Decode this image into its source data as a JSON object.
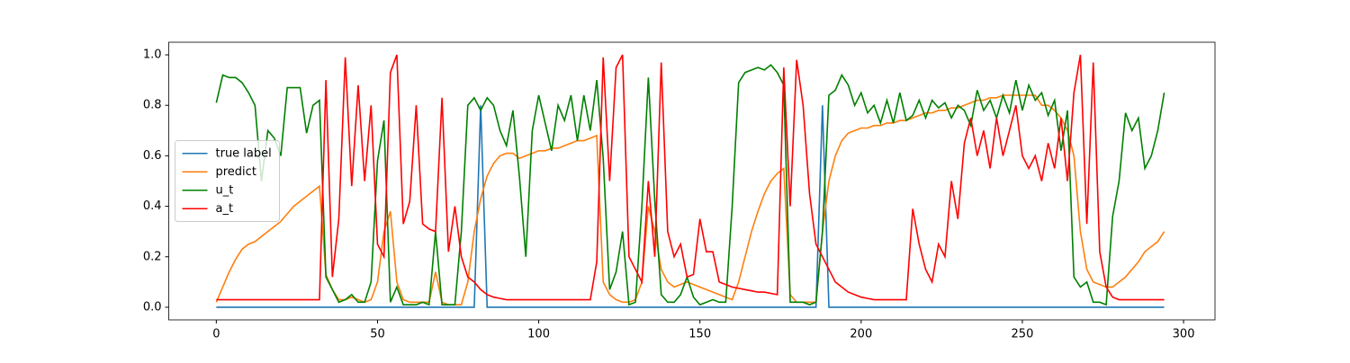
{
  "chart_data": {
    "type": "line",
    "x": [
      0,
      2,
      4,
      6,
      8,
      10,
      12,
      14,
      16,
      18,
      20,
      22,
      24,
      26,
      28,
      30,
      32,
      34,
      36,
      38,
      40,
      42,
      44,
      46,
      48,
      50,
      52,
      54,
      56,
      58,
      60,
      62,
      64,
      66,
      68,
      70,
      72,
      74,
      76,
      78,
      80,
      82,
      84,
      86,
      88,
      90,
      92,
      94,
      96,
      98,
      100,
      102,
      104,
      106,
      108,
      110,
      112,
      114,
      116,
      118,
      120,
      122,
      124,
      126,
      128,
      130,
      132,
      134,
      136,
      138,
      140,
      142,
      144,
      146,
      148,
      150,
      152,
      154,
      156,
      158,
      160,
      162,
      164,
      166,
      168,
      170,
      172,
      174,
      176,
      178,
      180,
      182,
      184,
      186,
      188,
      190,
      192,
      194,
      196,
      198,
      200,
      202,
      204,
      206,
      208,
      210,
      212,
      214,
      216,
      218,
      220,
      222,
      224,
      226,
      228,
      230,
      232,
      234,
      236,
      238,
      240,
      242,
      244,
      246,
      248,
      250,
      252,
      254,
      256,
      258,
      260,
      262,
      264,
      266,
      268,
      270,
      272,
      274,
      276,
      278,
      280,
      282,
      284,
      286,
      288,
      290,
      292,
      294
    ],
    "series": [
      {
        "name": "true label",
        "color": "#1f77b4",
        "values": [
          0,
          0,
          0,
          0,
          0,
          0,
          0,
          0,
          0,
          0,
          0,
          0,
          0,
          0,
          0,
          0,
          0,
          0,
          0,
          0,
          0,
          0,
          0,
          0,
          0,
          0,
          0,
          0,
          0,
          0,
          0,
          0,
          0,
          0,
          0,
          0,
          0,
          0,
          0,
          0,
          0,
          0.8,
          0,
          0,
          0,
          0,
          0,
          0,
          0,
          0,
          0,
          0,
          0,
          0,
          0,
          0,
          0,
          0,
          0,
          0,
          0,
          0,
          0,
          0,
          0,
          0,
          0,
          0,
          0,
          0,
          0,
          0,
          0,
          0,
          0,
          0,
          0,
          0,
          0,
          0,
          0,
          0,
          0,
          0,
          0,
          0,
          0,
          0,
          0,
          0,
          0,
          0,
          0,
          0,
          0.8,
          0,
          0,
          0,
          0,
          0,
          0,
          0,
          0,
          0,
          0,
          0,
          0,
          0,
          0,
          0,
          0,
          0,
          0,
          0,
          0,
          0,
          0,
          0,
          0,
          0,
          0,
          0,
          0,
          0,
          0,
          0,
          0,
          0,
          0,
          0,
          0,
          0,
          0,
          0,
          0,
          0,
          0,
          0,
          0,
          0,
          0,
          0,
          0,
          0,
          0,
          0,
          0,
          0
        ]
      },
      {
        "name": "predict",
        "color": "#ff7f0e",
        "values": [
          0.02,
          0.08,
          0.14,
          0.19,
          0.23,
          0.25,
          0.26,
          0.28,
          0.3,
          0.32,
          0.34,
          0.37,
          0.4,
          0.42,
          0.44,
          0.46,
          0.48,
          0.13,
          0.07,
          0.03,
          0.03,
          0.04,
          0.03,
          0.02,
          0.03,
          0.1,
          0.3,
          0.38,
          0.1,
          0.03,
          0.02,
          0.02,
          0.02,
          0.02,
          0.14,
          0.02,
          0.01,
          0.01,
          0.01,
          0.1,
          0.3,
          0.43,
          0.52,
          0.57,
          0.6,
          0.61,
          0.61,
          0.59,
          0.6,
          0.61,
          0.62,
          0.62,
          0.63,
          0.63,
          0.64,
          0.65,
          0.66,
          0.66,
          0.67,
          0.68,
          0.1,
          0.05,
          0.03,
          0.02,
          0.02,
          0.03,
          0.1,
          0.4,
          0.3,
          0.15,
          0.1,
          0.08,
          0.09,
          0.1,
          0.09,
          0.08,
          0.07,
          0.06,
          0.05,
          0.04,
          0.03,
          0.1,
          0.2,
          0.3,
          0.38,
          0.45,
          0.5,
          0.53,
          0.55,
          0.05,
          0.02,
          0.02,
          0.02,
          0.02,
          0.3,
          0.5,
          0.6,
          0.66,
          0.69,
          0.7,
          0.71,
          0.71,
          0.72,
          0.72,
          0.73,
          0.73,
          0.74,
          0.74,
          0.75,
          0.76,
          0.77,
          0.77,
          0.78,
          0.78,
          0.79,
          0.79,
          0.8,
          0.81,
          0.82,
          0.82,
          0.83,
          0.83,
          0.84,
          0.84,
          0.84,
          0.84,
          0.84,
          0.84,
          0.8,
          0.8,
          0.78,
          0.75,
          0.7,
          0.6,
          0.3,
          0.15,
          0.1,
          0.09,
          0.08,
          0.08,
          0.1,
          0.12,
          0.15,
          0.18,
          0.22,
          0.24,
          0.26,
          0.3
        ]
      },
      {
        "name": "u_t",
        "color": "#008000",
        "values": [
          0.81,
          0.92,
          0.91,
          0.91,
          0.89,
          0.85,
          0.8,
          0.5,
          0.7,
          0.67,
          0.6,
          0.87,
          0.87,
          0.87,
          0.69,
          0.8,
          0.82,
          0.12,
          0.07,
          0.02,
          0.03,
          0.05,
          0.02,
          0.02,
          0.1,
          0.58,
          0.74,
          0.02,
          0.08,
          0.01,
          0.01,
          0.01,
          0.02,
          0.01,
          0.3,
          0.01,
          0.01,
          0.01,
          0.3,
          0.8,
          0.83,
          0.78,
          0.83,
          0.8,
          0.7,
          0.64,
          0.78,
          0.52,
          0.2,
          0.7,
          0.84,
          0.73,
          0.62,
          0.8,
          0.74,
          0.84,
          0.66,
          0.84,
          0.7,
          0.9,
          0.59,
          0.07,
          0.14,
          0.3,
          0.01,
          0.02,
          0.4,
          0.91,
          0.42,
          0.05,
          0.02,
          0.02,
          0.05,
          0.12,
          0.04,
          0.01,
          0.02,
          0.03,
          0.02,
          0.02,
          0.4,
          0.89,
          0.93,
          0.94,
          0.95,
          0.94,
          0.96,
          0.93,
          0.88,
          0.02,
          0.02,
          0.02,
          0.01,
          0.02,
          0.3,
          0.84,
          0.86,
          0.92,
          0.88,
          0.8,
          0.85,
          0.77,
          0.8,
          0.73,
          0.82,
          0.73,
          0.85,
          0.74,
          0.76,
          0.82,
          0.75,
          0.82,
          0.79,
          0.81,
          0.75,
          0.8,
          0.78,
          0.72,
          0.86,
          0.78,
          0.82,
          0.75,
          0.84,
          0.77,
          0.9,
          0.78,
          0.88,
          0.82,
          0.85,
          0.76,
          0.82,
          0.62,
          0.78,
          0.12,
          0.08,
          0.1,
          0.02,
          0.02,
          0.01,
          0.36,
          0.5,
          0.77,
          0.7,
          0.75,
          0.55,
          0.6,
          0.7,
          0.85
        ]
      },
      {
        "name": "a_t",
        "color": "#ff0000",
        "values": [
          0.03,
          0.03,
          0.03,
          0.03,
          0.03,
          0.03,
          0.03,
          0.03,
          0.03,
          0.03,
          0.03,
          0.03,
          0.03,
          0.03,
          0.03,
          0.03,
          0.03,
          0.9,
          0.12,
          0.35,
          0.99,
          0.48,
          0.88,
          0.5,
          0.8,
          0.25,
          0.2,
          0.93,
          1.0,
          0.33,
          0.42,
          0.8,
          0.33,
          0.31,
          0.3,
          0.83,
          0.22,
          0.4,
          0.2,
          0.12,
          0.1,
          0.07,
          0.05,
          0.04,
          0.035,
          0.03,
          0.03,
          0.03,
          0.03,
          0.03,
          0.03,
          0.03,
          0.03,
          0.03,
          0.03,
          0.03,
          0.03,
          0.03,
          0.03,
          0.18,
          0.99,
          0.5,
          0.95,
          1.0,
          0.2,
          0.15,
          0.1,
          0.5,
          0.2,
          0.97,
          0.3,
          0.2,
          0.25,
          0.12,
          0.13,
          0.35,
          0.22,
          0.22,
          0.1,
          0.09,
          0.08,
          0.075,
          0.07,
          0.065,
          0.06,
          0.06,
          0.055,
          0.05,
          0.95,
          0.4,
          0.98,
          0.8,
          0.45,
          0.25,
          0.2,
          0.15,
          0.1,
          0.08,
          0.06,
          0.05,
          0.04,
          0.035,
          0.03,
          0.03,
          0.03,
          0.03,
          0.03,
          0.03,
          0.39,
          0.25,
          0.15,
          0.1,
          0.25,
          0.2,
          0.5,
          0.35,
          0.65,
          0.75,
          0.6,
          0.7,
          0.55,
          0.75,
          0.6,
          0.7,
          0.8,
          0.6,
          0.55,
          0.6,
          0.5,
          0.65,
          0.55,
          0.75,
          0.5,
          0.85,
          1.0,
          0.33,
          0.97,
          0.22,
          0.08,
          0.04,
          0.03,
          0.03,
          0.03,
          0.03,
          0.03,
          0.03,
          0.03,
          0.03
        ]
      }
    ],
    "xlim": [
      -14.75,
      309.75
    ],
    "ylim": [
      -0.05,
      1.05
    ],
    "xticks": [
      0,
      50,
      100,
      150,
      200,
      250,
      300
    ],
    "yticks": [
      {
        "value": 0,
        "label": "0.0"
      },
      0.2,
      0.4,
      0.6,
      0.8,
      {
        "value": 1,
        "label": "1.0"
      }
    ],
    "legend": "center left"
  }
}
